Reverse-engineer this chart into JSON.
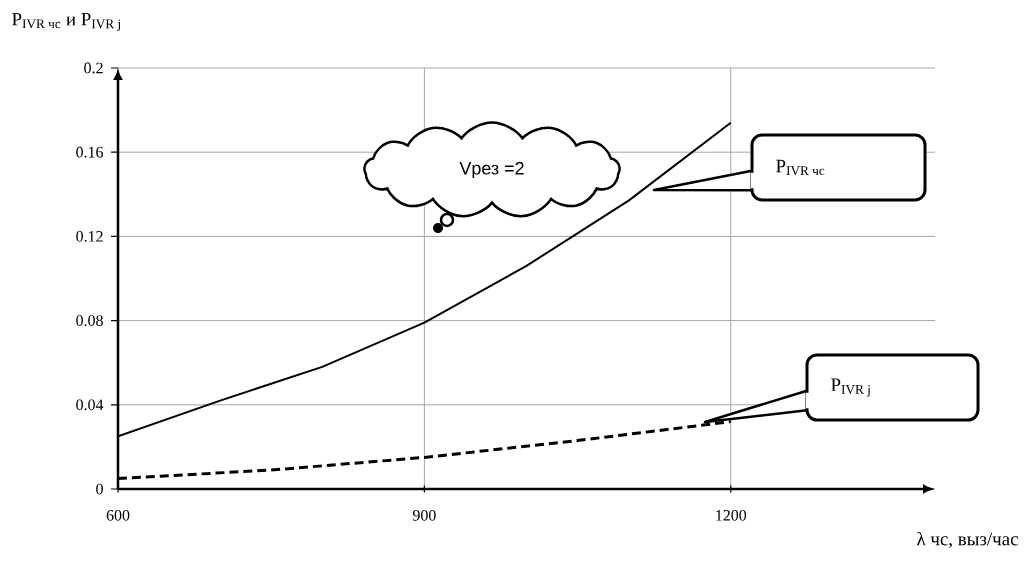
{
  "chart_data": {
    "type": "line",
    "xlabel": "λ чс, выз/час",
    "ylabel": "\\mathrm{P}_{\\text{IVR чс}}\\text{ и }\\mathrm{P}_{\\text{IVR j}}",
    "x": [
      600,
      700,
      800,
      900,
      1000,
      1100,
      1200
    ],
    "series": [
      {
        "name": "\\mathrm{P}_{\\text{IVR чс}}",
        "color": "#000000",
        "line_style": "solid",
        "values": [
          0.025,
          0.042,
          0.058,
          0.079,
          0.106,
          0.137,
          0.174
        ]
      },
      {
        "name": "\\mathrm{P}_{\\text{IVR j}}",
        "color": "#000000",
        "line_style": "dashed",
        "x": [
          600,
          750,
          900,
          1050,
          1200
        ],
        "values": [
          0.005,
          0.009,
          0.015,
          0.023,
          0.032
        ]
      }
    ],
    "xlim": [
      600,
      1400
    ],
    "ylim": [
      0,
      0.2
    ],
    "xticks": [
      600,
      900,
      1200
    ],
    "yticks": [
      0,
      0.04,
      0.08,
      0.12,
      0.16,
      0.2
    ],
    "grid": true,
    "annotations": [
      "Vрез =2"
    ]
  }
}
